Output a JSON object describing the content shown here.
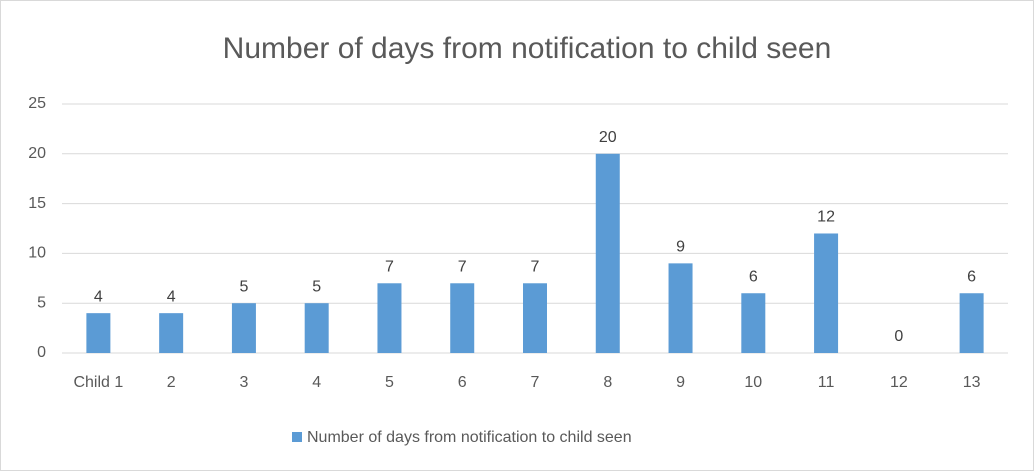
{
  "chart_data": {
    "type": "bar",
    "title": "Number of days from notification to child seen",
    "categories": [
      "Child 1",
      "2",
      "3",
      "4",
      "5",
      "6",
      "7",
      "8",
      "9",
      "10",
      "11",
      "12",
      "13"
    ],
    "series": [
      {
        "name": "Number of days from notification to child seen",
        "color": "#5b9bd5",
        "values": [
          4,
          4,
          5,
          5,
          7,
          7,
          7,
          20,
          9,
          6,
          12,
          0,
          6
        ]
      }
    ],
    "ylim": [
      0,
      25
    ],
    "yticks": [
      0,
      5,
      10,
      15,
      20,
      25
    ],
    "grid": true,
    "data_labels": true,
    "legend": "bottom"
  }
}
